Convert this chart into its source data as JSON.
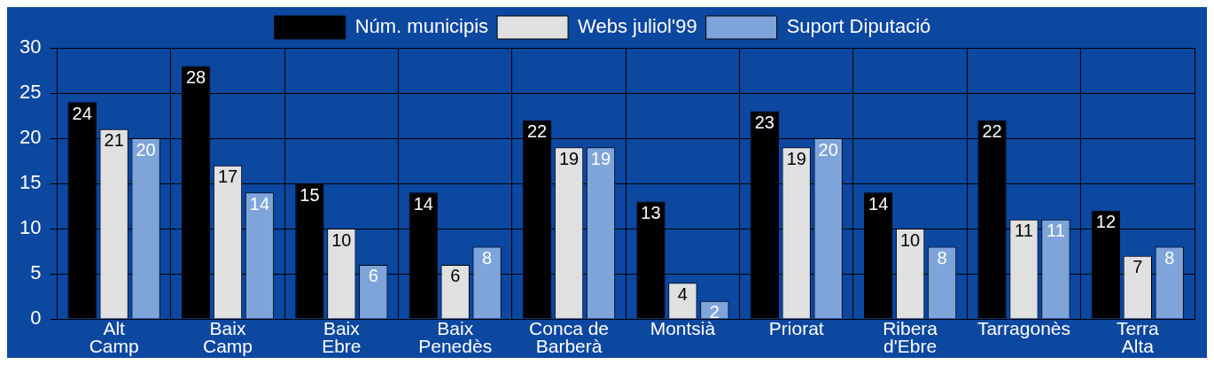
{
  "chart_data": {
    "type": "bar",
    "categories": [
      "Alt Camp",
      "Baix Camp",
      "Baix Ebre",
      "Baix Penedès",
      "Conca de Barberà",
      "Montsià",
      "Priorat",
      "Ribera d'Ebre",
      "Tarragonès",
      "Terra Alta"
    ],
    "series": [
      {
        "name": "Núm. municipis",
        "color": "#000000",
        "values": [
          24,
          28,
          15,
          14,
          22,
          13,
          23,
          14,
          22,
          12
        ]
      },
      {
        "name": "Webs juliol'99",
        "color": "#e0e0e0",
        "values": [
          21,
          17,
          10,
          6,
          19,
          4,
          19,
          10,
          11,
          7
        ]
      },
      {
        "name": "Suport Diputació",
        "color": "#7ea4da",
        "values": [
          20,
          14,
          6,
          8,
          19,
          2,
          20,
          8,
          11,
          8
        ]
      }
    ],
    "ylim": [
      0,
      30
    ],
    "yticks": [
      0,
      5,
      10,
      15,
      20,
      25,
      30
    ],
    "grid": true,
    "legend": "top",
    "data_labels": true
  }
}
